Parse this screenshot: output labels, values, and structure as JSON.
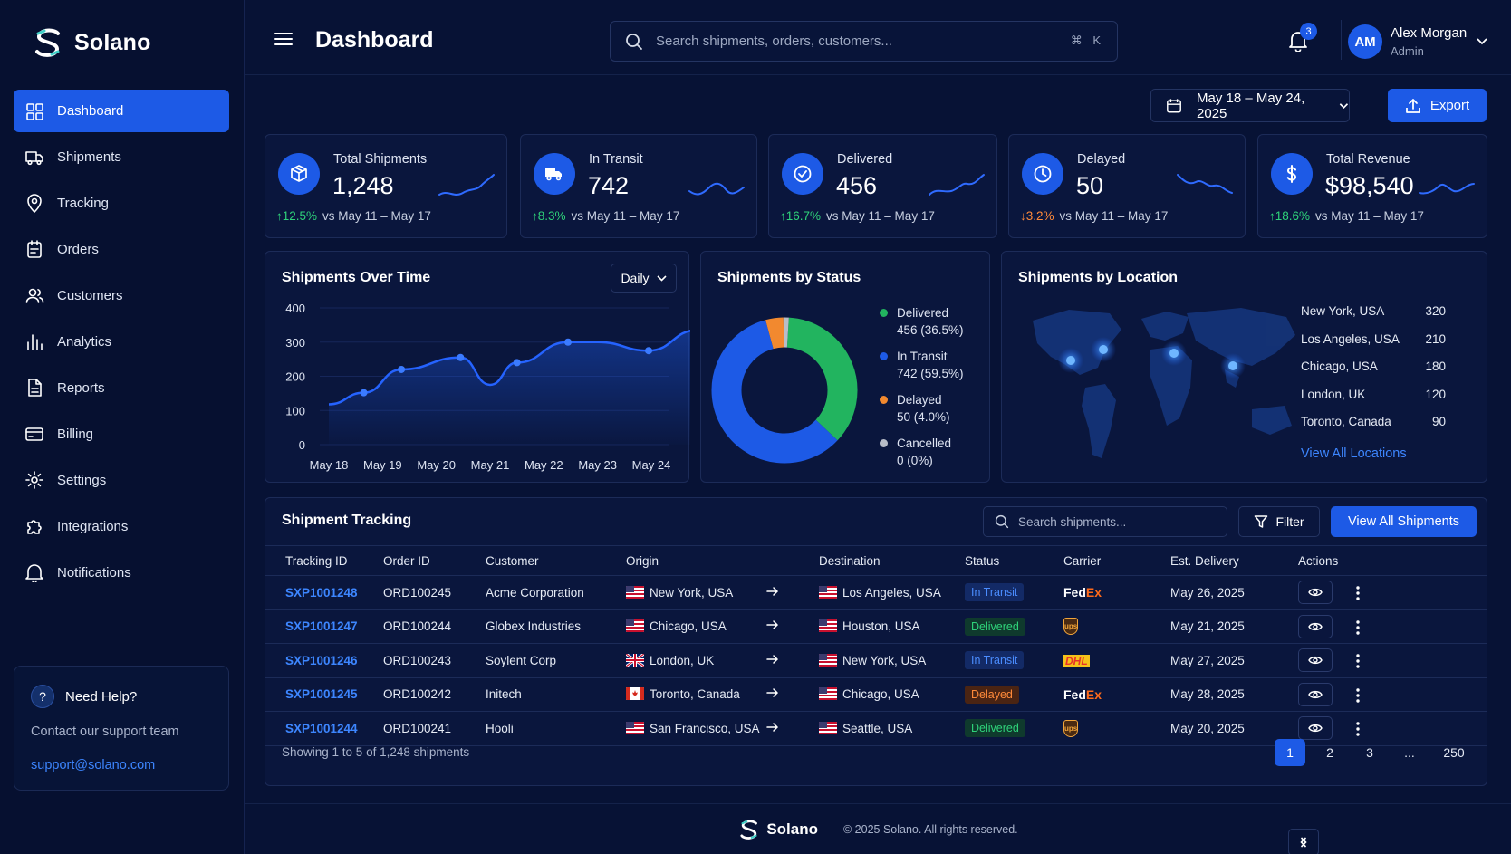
{
  "brand": {
    "name": "Solano",
    "accent": "#1d5ae6"
  },
  "sidebar": {
    "items": [
      {
        "label": "Dashboard",
        "icon": "grid-icon",
        "active": true
      },
      {
        "label": "Shipments",
        "icon": "truck-icon"
      },
      {
        "label": "Tracking",
        "icon": "location-pin-icon"
      },
      {
        "label": "Orders",
        "icon": "clipboard-icon"
      },
      {
        "label": "Customers",
        "icon": "users-icon"
      },
      {
        "label": "Analytics",
        "icon": "bar-chart-icon"
      },
      {
        "label": "Reports",
        "icon": "document-icon"
      },
      {
        "label": "Billing",
        "icon": "credit-card-icon"
      },
      {
        "label": "Settings",
        "icon": "gear-icon"
      },
      {
        "label": "Integrations",
        "icon": "puzzle-icon"
      },
      {
        "label": "Notifications",
        "icon": "bell-icon"
      }
    ],
    "help": {
      "title": "Need Help?",
      "subtitle": "Contact our support team",
      "email": "support@solano.com"
    }
  },
  "header": {
    "title": "Dashboard",
    "search_placeholder": "Search shipments, orders, customers...",
    "shortcut": "⌘ K",
    "notification_count": "3",
    "user": {
      "initials": "AM",
      "name": "Alex Morgan",
      "role": "Admin"
    }
  },
  "toolbar": {
    "date_range": "May 18 – May 24, 2025",
    "export_label": "Export"
  },
  "kpis": [
    {
      "label": "Total Shipments",
      "value": "1,248",
      "delta": "12.5%",
      "direction": "up",
      "compare": "vs May 11 – May 17",
      "icon": "box-icon"
    },
    {
      "label": "In Transit",
      "value": "742",
      "delta": "8.3%",
      "direction": "up",
      "compare": "vs May 11 – May 17",
      "icon": "truck-icon"
    },
    {
      "label": "Delivered",
      "value": "456",
      "delta": "16.7%",
      "direction": "up",
      "compare": "vs May 11 – May 17",
      "icon": "check-circle-icon"
    },
    {
      "label": "Delayed",
      "value": "50",
      "delta": "3.2%",
      "direction": "down",
      "compare": "vs May 11 – May 17",
      "icon": "clock-icon"
    },
    {
      "label": "Total Revenue",
      "value": "$98,540",
      "delta": "18.6%",
      "direction": "up",
      "compare": "vs May 11 – May 17",
      "icon": "dollar-icon"
    }
  ],
  "shipments_over_time": {
    "title": "Shipments Over Time",
    "period": "Daily"
  },
  "shipments_by_status": {
    "title": "Shipments by Status",
    "legend": [
      {
        "name": "Delivered",
        "detail": "456 (36.5%)",
        "color": "#22b45f"
      },
      {
        "name": "In Transit",
        "detail": "742 (59.5%)",
        "color": "#1d5ae6"
      },
      {
        "name": "Delayed",
        "detail": "50 (4.0%)",
        "color": "#f2892f"
      },
      {
        "name": "Cancelled",
        "detail": "0 (0%)",
        "color": "#b8bdc8"
      }
    ]
  },
  "shipments_by_location": {
    "title": "Shipments by Location",
    "locations": [
      {
        "name": "New York, USA",
        "count": "320"
      },
      {
        "name": "Los Angeles, USA",
        "count": "210"
      },
      {
        "name": "Chicago, USA",
        "count": "180"
      },
      {
        "name": "London, UK",
        "count": "120"
      },
      {
        "name": "Toronto, Canada",
        "count": "90"
      }
    ],
    "link": "View All Locations"
  },
  "chart_data": [
    {
      "type": "area",
      "categories": [
        "May 18",
        "May 19",
        "May 20",
        "May 21",
        "May 22",
        "May 23",
        "May 24"
      ],
      "x": [
        "May 18",
        "May 18.5",
        "May 19",
        "May 20",
        "May 20.5",
        "May 21",
        "May 22",
        "May 22.5",
        "May 23",
        "May 24"
      ],
      "series": [
        {
          "values": [
            118,
            152,
            220,
            255,
            175,
            240,
            300,
            300,
            275,
            335
          ]
        }
      ],
      "yticks": [
        0,
        100,
        200,
        300,
        400
      ],
      "ylim": [
        0,
        400
      ],
      "grid": true
    },
    {
      "type": "pie",
      "donut": true,
      "labels": [
        "Delivered",
        "In Transit",
        "Delayed",
        "Cancelled"
      ],
      "values": [
        36.5,
        59.5,
        4.0,
        0
      ],
      "colors": [
        "#22b45f",
        "#1d5ae6",
        "#f2892f",
        "#b8bdc8"
      ]
    }
  ],
  "tracking": {
    "title": "Shipment Tracking",
    "search_placeholder": "Search shipments...",
    "filter_label": "Filter",
    "view_all_label": "View All Shipments",
    "columns": [
      "Tracking ID",
      "Order ID",
      "Customer",
      "Origin",
      "Destination",
      "Status",
      "Carrier",
      "Est. Delivery",
      "Actions"
    ],
    "rows": [
      {
        "tracking": "SXP1001248",
        "order": "ORD100245",
        "customer": "Acme Corporation",
        "origin": "New York, USA",
        "origin_flag": "us",
        "destination": "Los Angeles, USA",
        "dest_flag": "us",
        "status": "In Transit",
        "status_kind": "transit",
        "carrier": "FedEx",
        "eta": "May 26, 2025"
      },
      {
        "tracking": "SXP1001247",
        "order": "ORD100244",
        "customer": "Globex Industries",
        "origin": "Chicago, USA",
        "origin_flag": "us",
        "destination": "Houston, USA",
        "dest_flag": "us",
        "status": "Delivered",
        "status_kind": "delivered",
        "carrier": "ups",
        "eta": "May 21, 2025"
      },
      {
        "tracking": "SXP1001246",
        "order": "ORD100243",
        "customer": "Soylent Corp",
        "origin": "London, UK",
        "origin_flag": "uk",
        "destination": "New York, USA",
        "dest_flag": "us",
        "status": "In Transit",
        "status_kind": "transit",
        "carrier": "DHL",
        "eta": "May 27, 2025"
      },
      {
        "tracking": "SXP1001245",
        "order": "ORD100242",
        "customer": "Initech",
        "origin": "Toronto, Canada",
        "origin_flag": "ca",
        "destination": "Chicago, USA",
        "dest_flag": "us",
        "status": "Delayed",
        "status_kind": "delayed",
        "carrier": "FedEx",
        "eta": "May 28, 2025"
      },
      {
        "tracking": "SXP1001244",
        "order": "ORD100241",
        "customer": "Hooli",
        "origin": "San Francisco, USA",
        "origin_flag": "us",
        "destination": "Seattle, USA",
        "dest_flag": "us",
        "status": "Delivered",
        "status_kind": "delivered",
        "carrier": "ups",
        "eta": "May 20, 2025"
      }
    ],
    "footer_text": "Showing 1 to 5 of 1,248 shipments",
    "pages": [
      "1",
      "2",
      "3",
      "...",
      "250"
    ]
  },
  "footer": {
    "brand": "Solano",
    "copyright": "© 2025 Solano. All rights reserved."
  }
}
